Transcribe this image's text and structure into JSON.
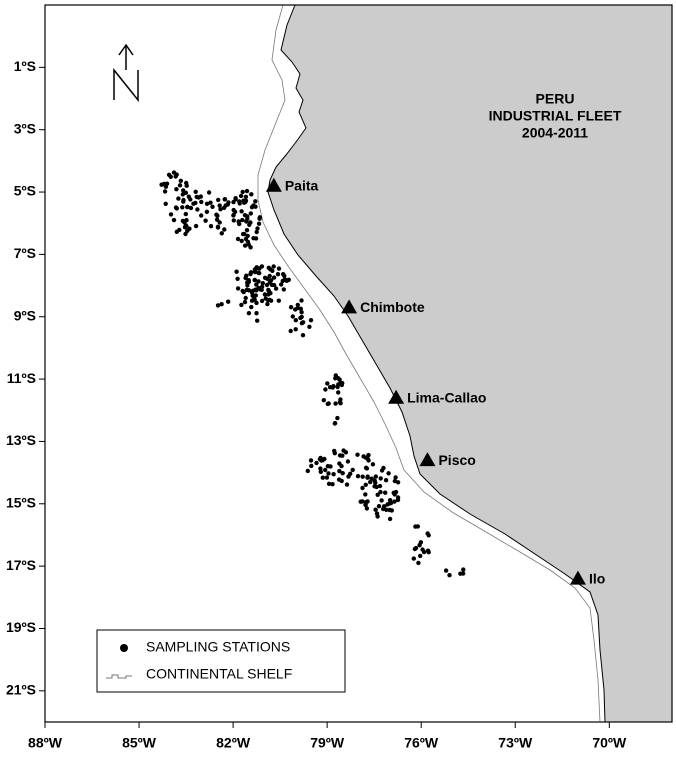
{
  "map": {
    "title": [
      "PERU",
      "INDUSTRIAL FLEET",
      "2004-2011"
    ],
    "xlim": [
      -88,
      -68
    ],
    "ylim": [
      -22,
      1
    ],
    "xticks": [
      {
        "value": -88,
        "label": "88ºW"
      },
      {
        "value": -85,
        "label": "85ºW"
      },
      {
        "value": -82,
        "label": "82ºW"
      },
      {
        "value": -79,
        "label": "79ºW"
      },
      {
        "value": -76,
        "label": "76ºW"
      },
      {
        "value": -73,
        "label": "73ºW"
      },
      {
        "value": -70,
        "label": "70ºW"
      }
    ],
    "yticks": [
      {
        "value": -1,
        "label": "1ºS"
      },
      {
        "value": -3,
        "label": "3ºS"
      },
      {
        "value": -5,
        "label": "5ºS"
      },
      {
        "value": -7,
        "label": "7ºS"
      },
      {
        "value": -9,
        "label": "9ºS"
      },
      {
        "value": -11,
        "label": "11ºS"
      },
      {
        "value": -13,
        "label": "13ºS"
      },
      {
        "value": -15,
        "label": "15ºS"
      },
      {
        "value": -17,
        "label": "17ºS"
      },
      {
        "value": -19,
        "label": "19ºS"
      },
      {
        "value": -21,
        "label": "21ºS"
      }
    ],
    "ports": [
      {
        "name": "Paita",
        "lon": -80.7,
        "lat": -4.8
      },
      {
        "name": "Chimbote",
        "lon": -78.3,
        "lat": -8.7
      },
      {
        "name": "Lima-Callao",
        "lon": -76.8,
        "lat": -11.6
      },
      {
        "name": "Pisco",
        "lon": -75.8,
        "lat": -13.6
      },
      {
        "name": "Ilo",
        "lon": -71.0,
        "lat": -17.4
      }
    ],
    "legend": [
      "SAMPLING STATIONS",
      "CONTINENTAL SHELF"
    ]
  }
}
